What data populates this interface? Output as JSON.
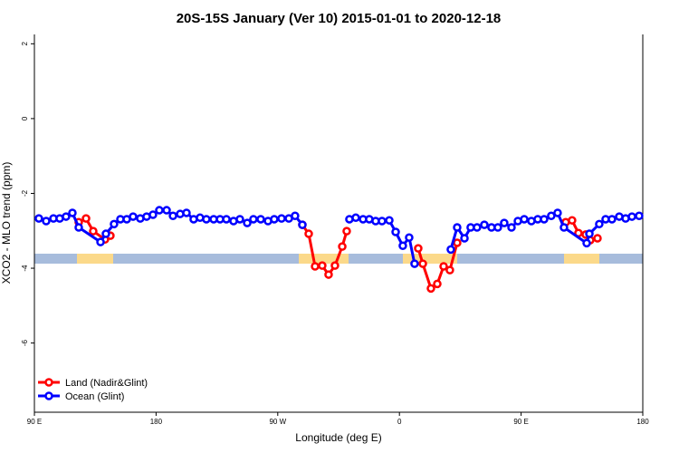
{
  "chart_data": {
    "type": "line",
    "title": "20S-15S January (Ver 10)   2015-01-01 to 2020-12-18",
    "x_label": "Longitude (deg E)",
    "y_label": "XCO2 - MLO trend (ppm)",
    "xlim": [
      90,
      540
    ],
    "ylim": [
      -7.85,
      2.25
    ],
    "xticks": [
      {
        "value": 90,
        "label": "90 E"
      },
      180,
      {
        "value": 270,
        "label": "90 W"
      },
      {
        "value": 360,
        "label": "0"
      },
      {
        "value": 450,
        "label": "90 E"
      },
      {
        "value": 540,
        "label": "180"
      }
    ],
    "yticks": [
      2,
      0,
      -2,
      -4,
      -6
    ],
    "legend": "bottom-left",
    "series": [
      {
        "name": "Land (Nadir&Glint)",
        "color": "#ff0000",
        "x": [
          122.8,
          128.2,
          133.5,
          142.2,
          146.2,
          null,
          288.2,
          292.9,
          297.6,
          302.9,
          307.6,
          312.3,
          317.7,
          321.0,
          null,
          373.9,
          377.3,
          383.3,
          388.0,
          392.7,
          397.3,
          402.7,
          null,
          483.0,
          487.7,
          492.4,
          497.8,
          501.1,
          506.5
        ],
        "values": [
          -2.77,
          -2.67,
          -3.01,
          -3.23,
          -3.13,
          null,
          -2.84,
          -3.08,
          -3.95,
          -3.93,
          -4.17,
          -3.93,
          -3.42,
          -3.01,
          null,
          -3.47,
          -3.88,
          -4.54,
          -4.42,
          -3.95,
          -4.05,
          -3.32,
          null,
          -2.77,
          -2.72,
          -3.06,
          -3.1,
          -3.25,
          -3.2
        ]
      },
      {
        "name": "Ocean (Glint)",
        "color": "#0000ff",
        "x": [
          93.3,
          98.7,
          104.1,
          108.7,
          113.4,
          118.1,
          122.8,
          138.9,
          142.9,
          148.9,
          153.6,
          158.3,
          163.0,
          168.3,
          173.0,
          177.7,
          182.4,
          187.8,
          192.5,
          197.8,
          202.5,
          207.8,
          212.5,
          217.2,
          222.6,
          227.3,
          232.0,
          237.3,
          242.0,
          247.4,
          252.0,
          257.4,
          262.8,
          267.4,
          272.8,
          278.2,
          282.8,
          288.2,
          null,
          323.0,
          327.7,
          333.1,
          337.7,
          342.4,
          347.1,
          352.5,
          357.2,
          362.5,
          367.2,
          371.2,
          null,
          398.0,
          402.7,
          408.1,
          412.7,
          417.4,
          422.8,
          428.1,
          432.8,
          437.5,
          442.9,
          447.6,
          452.3,
          457.6,
          462.3,
          467.0,
          472.3,
          477.0,
          481.7,
          498.5,
          500.5,
          507.8,
          512.5,
          517.2,
          522.6,
          527.3,
          532.0,
          537.3
        ],
        "values": [
          -2.67,
          -2.74,
          -2.67,
          -2.67,
          -2.62,
          -2.52,
          -2.91,
          -3.3,
          -3.08,
          -2.82,
          -2.69,
          -2.69,
          -2.62,
          -2.67,
          -2.62,
          -2.57,
          -2.45,
          -2.45,
          -2.6,
          -2.55,
          -2.52,
          -2.69,
          -2.65,
          -2.69,
          -2.69,
          -2.69,
          -2.69,
          -2.74,
          -2.69,
          -2.79,
          -2.69,
          -2.69,
          -2.74,
          -2.69,
          -2.67,
          -2.67,
          -2.6,
          -2.84,
          null,
          -2.69,
          -2.65,
          -2.69,
          -2.69,
          -2.74,
          -2.74,
          -2.72,
          -3.03,
          -3.4,
          -3.18,
          -3.88,
          null,
          -3.5,
          -2.91,
          -3.2,
          -2.91,
          -2.91,
          -2.84,
          -2.91,
          -2.91,
          -2.79,
          -2.91,
          -2.74,
          -2.69,
          -2.74,
          -2.69,
          -2.69,
          -2.6,
          -2.52,
          -2.91,
          -3.33,
          -3.08,
          -2.82,
          -2.69,
          -2.69,
          -2.62,
          -2.67,
          -2.62,
          -2.6
        ]
      }
    ]
  }
}
